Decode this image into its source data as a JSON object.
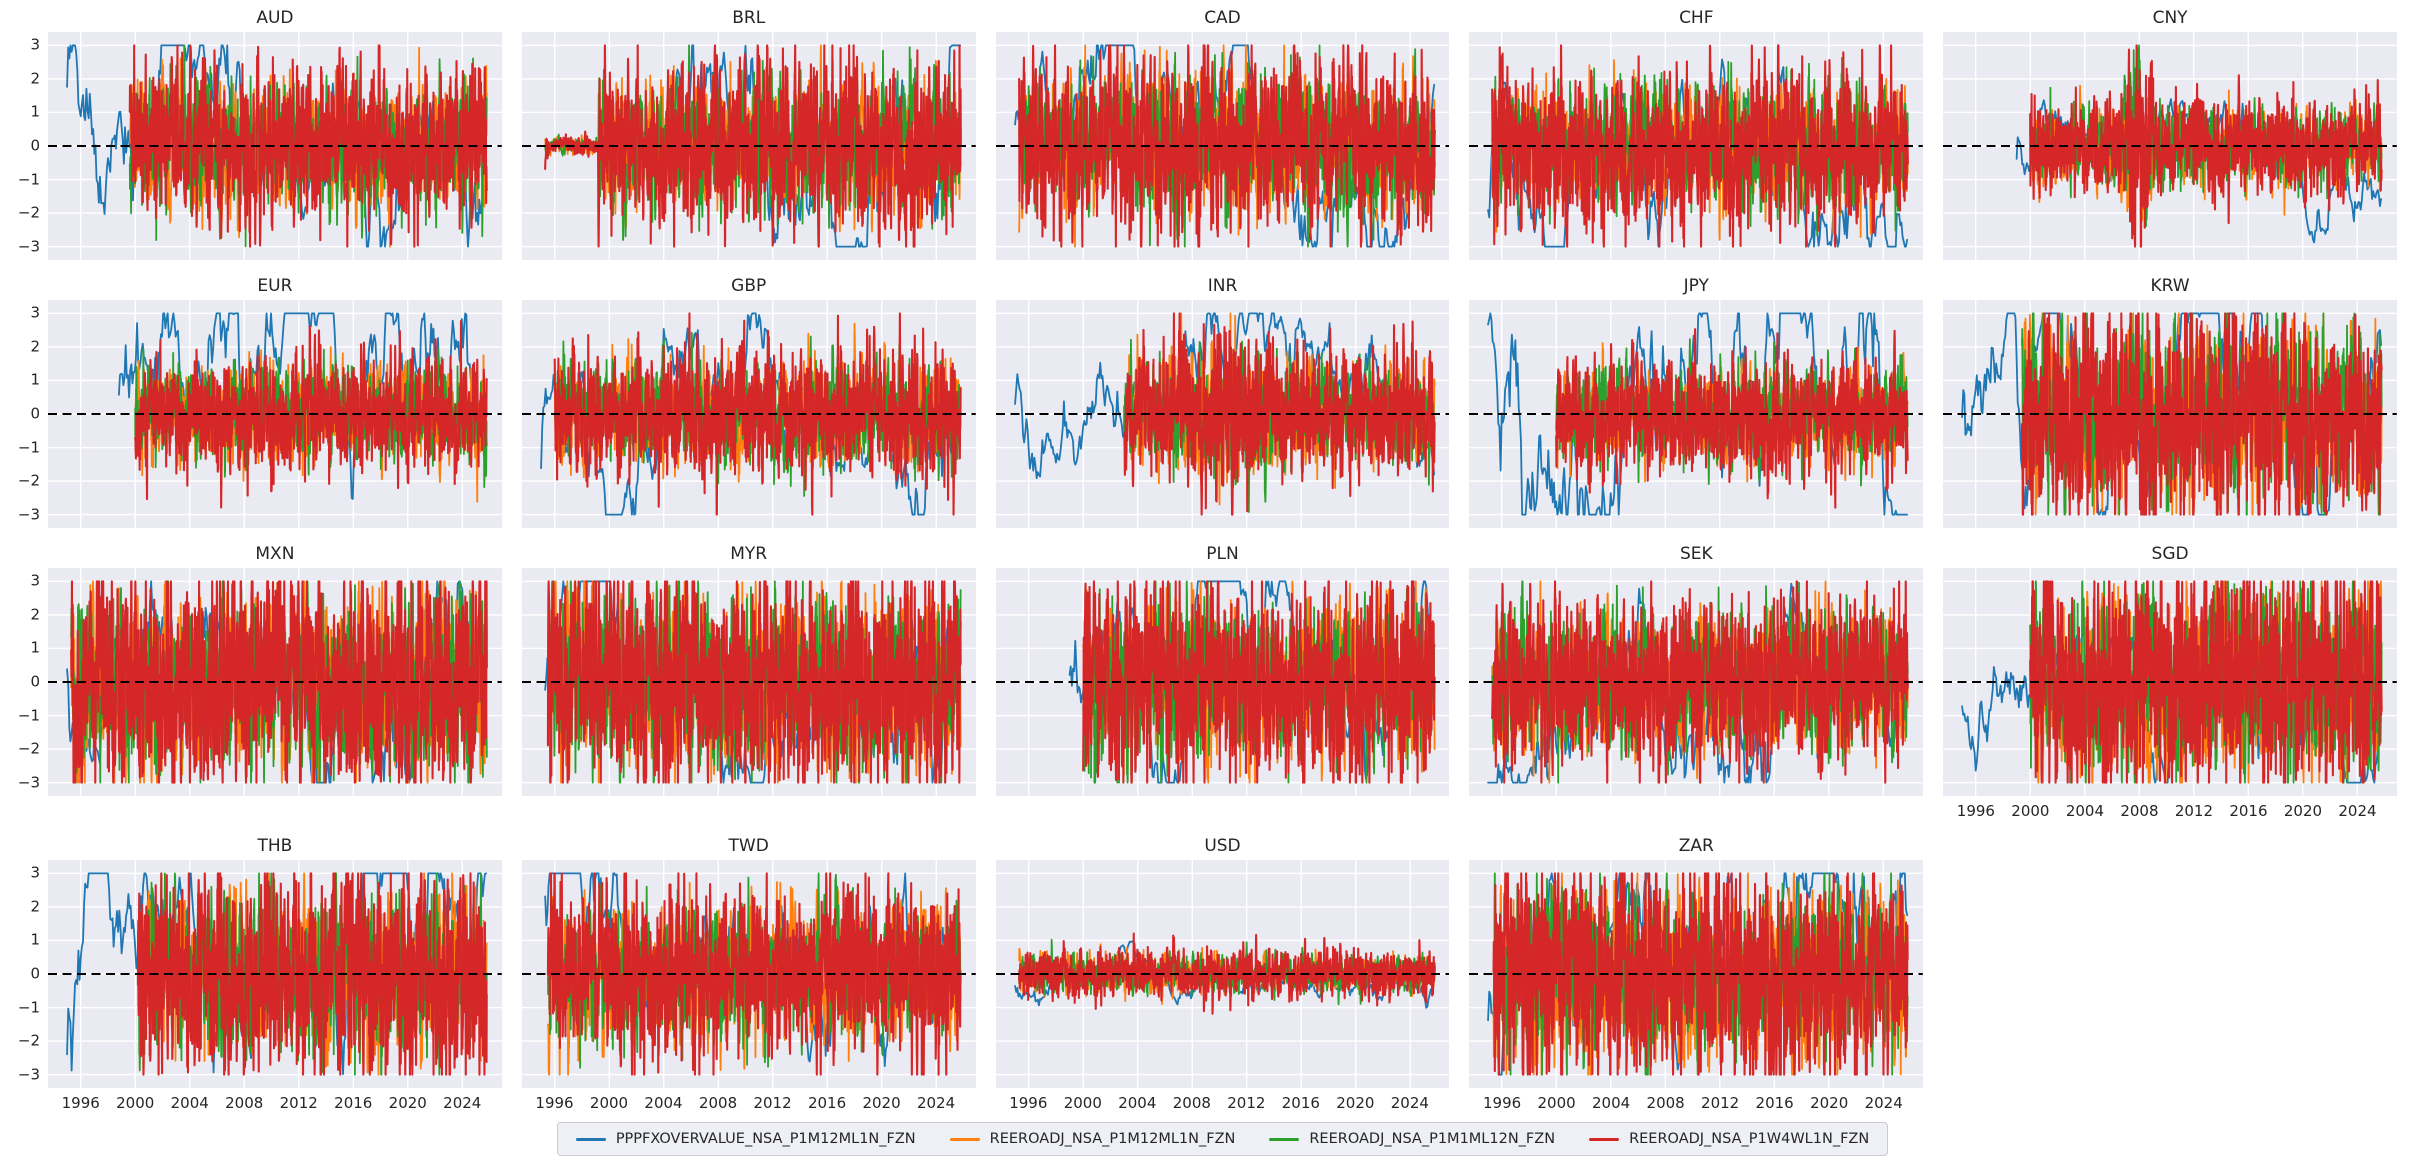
{
  "figure": {
    "panel_background": "#eaeaf2",
    "grid_color": "#ffffff",
    "text_color": "#262626",
    "zero_line_color": "#000000"
  },
  "chart_data": {
    "type": "line",
    "layout": "facet_grid_small_multiples",
    "grid": {
      "rows": 4,
      "cols": 5,
      "n_panels": 19
    },
    "x_axis": {
      "range": [
        1993.6,
        2026.9
      ],
      "ticks": [
        1996,
        2000,
        2004,
        2008,
        2012,
        2016,
        2020,
        2024
      ],
      "tick_labels": [
        "1996",
        "2000",
        "2004",
        "2008",
        "2012",
        "2016",
        "2020",
        "2024"
      ]
    },
    "y_axis": {
      "range": [
        -3.4,
        3.4
      ],
      "ticks": [
        3,
        2,
        1,
        0,
        -1,
        -2,
        -3
      ],
      "tick_labels": [
        "3",
        "2",
        "1",
        "0",
        "−1",
        "−2",
        "−3"
      ]
    },
    "value_clip": [
      -3,
      3
    ],
    "data_span": [
      1995.0,
      2025.8
    ],
    "zero_reference_line": {
      "y": 0,
      "style": "dashed",
      "color": "#000000"
    },
    "grid_on": true,
    "series_defs": [
      {
        "name": "PPPFXOVERVALUE_NSA_P1M12ML1N_FZN",
        "color": "#1f77b4",
        "freq": "monthly"
      },
      {
        "name": "REEROADJ_NSA_P1M12ML1N_FZN",
        "color": "#ff7f0e",
        "freq": "weekly"
      },
      {
        "name": "REEROADJ_NSA_P1M1ML12N_FZN",
        "color": "#2ca02c",
        "freq": "weekly"
      },
      {
        "name": "REEROADJ_NSA_P1W4WL1N_FZN",
        "color": "#d62728",
        "freq": "weekly"
      }
    ],
    "legend": {
      "position": "bottom-center",
      "entries": [
        {
          "label": "PPPFXOVERVALUE_NSA_P1M12ML1N_FZN",
          "color": "#1f77b4"
        },
        {
          "label": "REEROADJ_NSA_P1M12ML1N_FZN",
          "color": "#ff7f0e"
        },
        {
          "label": "REEROADJ_NSA_P1M1ML12N_FZN",
          "color": "#2ca02c"
        },
        {
          "label": "REEROADJ_NSA_P1W4WL1N_FZN",
          "color": "#d62728"
        }
      ]
    },
    "panels": [
      {
        "title": "AUD",
        "blue_start": 1995.0,
        "main_start": 1999.6,
        "amp": 1.15,
        "blue_amp": 1.3,
        "blue_spike": {
          "center": 1998.7,
          "width": 0.8,
          "boost": 2.4
        }
      },
      {
        "title": "BRL",
        "blue_start": 2001.5,
        "main_start": 1995.3,
        "amp": 1.2,
        "blue_amp": 1.4,
        "quiet_until": 1999.2,
        "quiet_amp": 0.12
      },
      {
        "title": "CAD",
        "blue_start": 1995.0,
        "main_start": 1995.3,
        "amp": 1.25,
        "blue_amp": 1.1
      },
      {
        "title": "CHF",
        "blue_start": 1995.0,
        "main_start": 1995.3,
        "amp": 1.1,
        "blue_amp": 1.2,
        "blue_spike": {
          "center": 1996.3,
          "width": 0.6,
          "boost": 1.8
        }
      },
      {
        "title": "CNY",
        "blue_start": 1999.0,
        "main_start": 2000.0,
        "amp": 0.7,
        "blue_amp": 0.6,
        "spike": {
          "center": 2007.9,
          "width": 0.9,
          "boost": 2.6
        }
      },
      {
        "title": "EUR",
        "blue_start": 1998.8,
        "main_start": 2000.0,
        "amp": 0.85,
        "blue_amp": 1.25
      },
      {
        "title": "GBP",
        "blue_start": 1995.0,
        "main_start": 1996.0,
        "amp": 0.95,
        "blue_amp": 1.0
      },
      {
        "title": "INR",
        "blue_start": 1995.0,
        "main_start": 2003.0,
        "amp": 0.9,
        "blue_amp": 0.85,
        "spike": {
          "center": 2010.0,
          "width": 3.5,
          "boost": 1.5
        }
      },
      {
        "title": "JPY",
        "blue_start": 1995.0,
        "main_start": 2000.0,
        "amp": 0.85,
        "blue_amp": 1.7,
        "blue_spike": {
          "center": 1996.4,
          "width": 1.1,
          "boost": 2.0
        }
      },
      {
        "title": "KRW",
        "blue_start": 1995.0,
        "main_start": 1999.4,
        "amp": 1.55,
        "blue_amp": 1.4,
        "blue_spike": {
          "center": 1998.3,
          "width": 0.8,
          "boost": 2.8
        }
      },
      {
        "title": "MXN",
        "blue_start": 1995.0,
        "main_start": 1995.3,
        "amp": 1.6,
        "blue_amp": 1.2
      },
      {
        "title": "MYR",
        "blue_start": 1995.3,
        "main_start": 1995.5,
        "amp": 1.6,
        "blue_amp": 1.2
      },
      {
        "title": "PLN",
        "blue_start": 1999.0,
        "main_start": 2000.0,
        "amp": 1.45,
        "blue_amp": 1.2
      },
      {
        "title": "SEK",
        "blue_start": 1995.0,
        "main_start": 1995.3,
        "amp": 1.25,
        "blue_amp": 1.2
      },
      {
        "title": "SGD",
        "blue_start": 1995.0,
        "main_start": 2000.0,
        "amp": 1.65,
        "blue_amp": 1.0
      },
      {
        "title": "THB",
        "blue_start": 1995.0,
        "main_start": 2000.2,
        "amp": 1.5,
        "blue_amp": 1.5,
        "blue_spike": {
          "center": 1997.8,
          "width": 0.7,
          "boost": 2.6
        }
      },
      {
        "title": "TWD",
        "blue_start": 1995.3,
        "main_start": 1995.5,
        "amp": 1.25,
        "blue_amp": 1.1
      },
      {
        "title": "USD",
        "blue_start": 1995.0,
        "main_start": 1995.3,
        "amp": 0.35,
        "blue_amp": 0.3
      },
      {
        "title": "ZAR",
        "blue_start": 1995.0,
        "main_start": 1995.4,
        "amp": 1.55,
        "blue_amp": 1.4
      }
    ],
    "note": "Each panel shows standardized (z-score-like) high-frequency series clipped at ±3, oscillating around a dashed zero line."
  }
}
